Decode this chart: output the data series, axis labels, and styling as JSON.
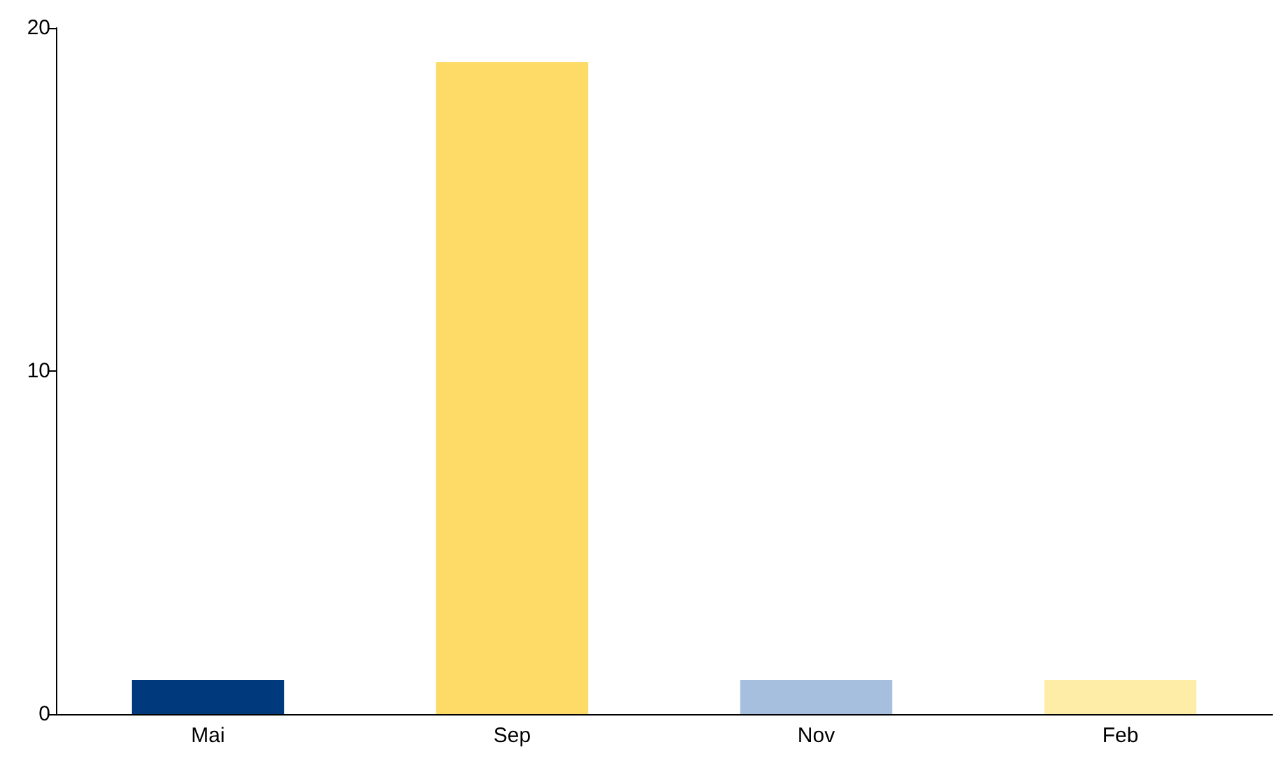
{
  "chart_data": {
    "type": "bar",
    "categories": [
      "Mai",
      "Sep",
      "Nov",
      "Feb"
    ],
    "values": [
      1,
      19,
      1,
      1
    ],
    "colors": [
      "#003a7d",
      "#fddb66",
      "#a6bfdf",
      "#fdeda6"
    ],
    "ylim": [
      0,
      20
    ],
    "yticks": [
      0,
      10,
      20
    ],
    "grid": false
  }
}
